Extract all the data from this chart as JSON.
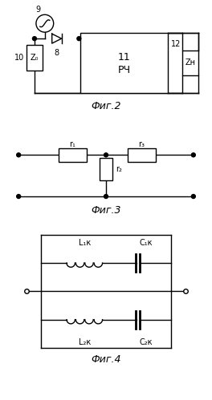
{
  "bg_color": "#ffffff",
  "fig_width": 2.64,
  "fig_height": 4.99,
  "dpi": 100,
  "fig2_label": "Фиг.2",
  "fig3_label": "Фиг.3",
  "fig4_label": "Фиг.4",
  "label_9": "9",
  "label_8": "8",
  "label_10": "10",
  "label_11": "11",
  "label_rch": "РЧ",
  "label_12": "12",
  "label_Zn": "Zн",
  "label_Z0": "Z₀",
  "label_r1": "r₁",
  "label_r2": "r₂",
  "label_r3": "r₃",
  "label_L1k": "L₁к",
  "label_L2k": "L₂к",
  "label_C1k": "C₁к",
  "label_C2k": "C₂к"
}
